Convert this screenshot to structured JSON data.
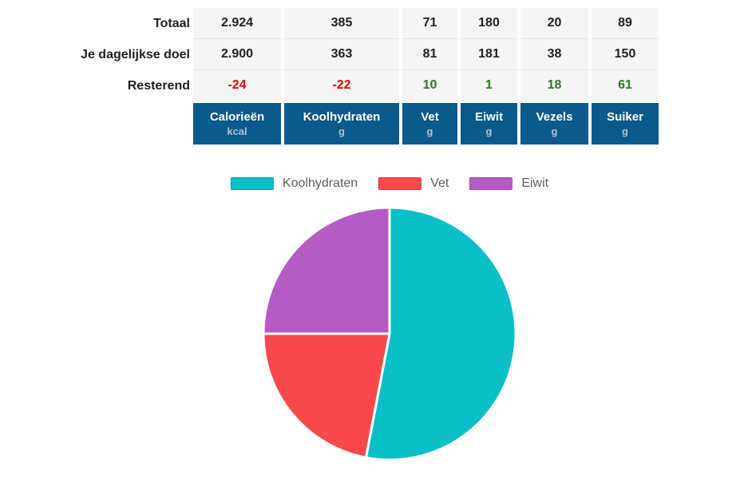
{
  "table": {
    "row_labels": [
      "Totaal",
      "Je dagelijkse doel",
      "Resterend"
    ],
    "columns": [
      {
        "label": "Calorieën",
        "unit": "kcal"
      },
      {
        "label": "Koolhydraten",
        "unit": "g"
      },
      {
        "label": "Vet",
        "unit": "g"
      },
      {
        "label": "Eiwit",
        "unit": "g"
      },
      {
        "label": "Vezels",
        "unit": "g"
      },
      {
        "label": "Suiker",
        "unit": "g"
      }
    ],
    "rows": [
      {
        "label": "Totaal",
        "values": [
          "2.924",
          "385",
          "71",
          "180",
          "20",
          "89"
        ],
        "colored": false
      },
      {
        "label": "Je dagelijkse doel",
        "values": [
          "2.900",
          "363",
          "81",
          "181",
          "38",
          "150"
        ],
        "colored": false
      },
      {
        "label": "Resterend",
        "values": [
          "-24",
          "-22",
          "10",
          "1",
          "18",
          "61"
        ],
        "colored": true
      }
    ]
  },
  "chart_data": {
    "type": "pie",
    "title": "",
    "categories": [
      "Koolhydraten",
      "Vet",
      "Eiwit"
    ],
    "values": [
      53,
      22,
      25
    ],
    "value_unit": "percent_of_calories",
    "colors": [
      "#0bbfc7",
      "#f7494b",
      "#b55bc4"
    ],
    "legend_position": "top",
    "start_angle_deg": 0,
    "direction": "clockwise"
  },
  "colors": {
    "header_bg": "#0a5a8c",
    "header_text": "#ffffff",
    "header_unit_text": "#b3c1ce",
    "row_bg": "#f5f5f5",
    "row_separator": "#e3e3e3",
    "value_text": "#222222",
    "negative_value": "#ee0000",
    "positive_value": "#287d1d",
    "legend_text": "#5d5d5d",
    "pie_border": "#ffffff"
  }
}
